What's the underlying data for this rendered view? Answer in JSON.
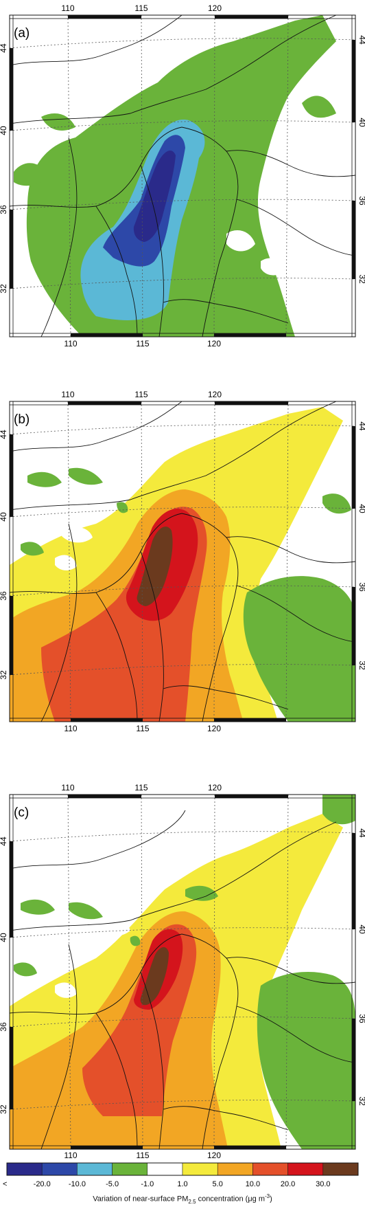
{
  "panels": [
    {
      "id": "a",
      "label": "(a)"
    },
    {
      "id": "b",
      "label": "(b)"
    },
    {
      "id": "c",
      "label": "(c)"
    }
  ],
  "lon_ticks": [
    "110",
    "115",
    "120"
  ],
  "lat_ticks": [
    "44",
    "40",
    "36",
    "32"
  ],
  "legend": {
    "title_prefix": "Variation of near-surface PM",
    "title_sub": "2.5",
    "title_suffix": " concentration (μg m",
    "title_sup": "-3",
    "title_end": ")",
    "lower_arrow": "<",
    "thresholds": [
      "-20.0",
      "-10.0",
      "-5.0",
      "-1.0",
      "1.0",
      "5.0",
      "10.0",
      "20.0",
      "30.0"
    ],
    "colors": [
      "#2a2a8a",
      "#2d48a8",
      "#5bb8d6",
      "#6ab33a",
      "#ffffff",
      "#f4ea3c",
      "#f2a624",
      "#e4502a",
      "#d4141c",
      "#6b3a1e"
    ]
  }
}
